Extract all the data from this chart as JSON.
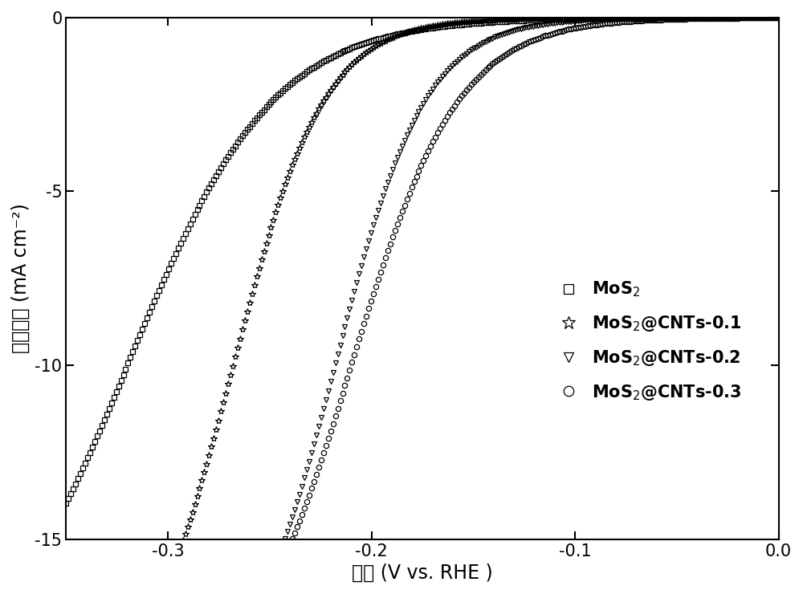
{
  "xlabel": "电势 (V vs. RHE )",
  "ylabel": "电流密度 (mA cm⁻²)",
  "xlim": [
    -0.35,
    0.0
  ],
  "ylim": [
    -15,
    0
  ],
  "xticks": [
    -0.3,
    -0.2,
    -0.1,
    0.0
  ],
  "yticks": [
    0,
    -5,
    -10,
    -15
  ],
  "background_color": "#ffffff",
  "curves": [
    {
      "j_limit": -20.0,
      "x_half": -0.32,
      "steep": 28,
      "x_start": -0.35,
      "x_end": 0.0,
      "n_points": 300,
      "marker": "s",
      "ms": 4.5
    },
    {
      "j_limit": -20.0,
      "x_half": -0.268,
      "steep": 45,
      "x_start": -0.35,
      "x_end": 0.0,
      "n_points": 300,
      "marker": "*",
      "ms": 6.0
    },
    {
      "j_limit": -20.0,
      "x_half": -0.218,
      "steep": 45,
      "x_start": -0.35,
      "x_end": 0.0,
      "n_points": 300,
      "marker": "v",
      "ms": 4.5
    },
    {
      "j_limit": -20.0,
      "x_half": -0.21,
      "steep": 38,
      "x_start": -0.35,
      "x_end": 0.0,
      "n_points": 300,
      "marker": "o",
      "ms": 4.5
    }
  ],
  "labels": [
    "MoS$_2$",
    "MoS$_2$@CNTs-0.1",
    "MoS$_2$@CNTs-0.2",
    "MoS$_2$@CNTs-0.3"
  ],
  "legend_fontsize": 15,
  "tick_fontsize": 15,
  "label_fontsize": 17
}
